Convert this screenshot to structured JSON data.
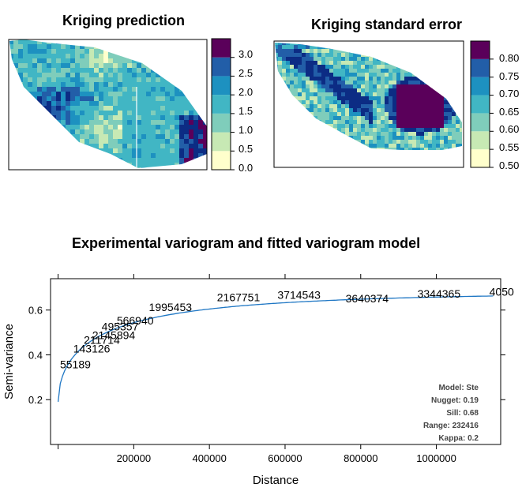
{
  "palette": [
    "#ffffcc",
    "#c7e9b4",
    "#7fcdbb",
    "#41b6c4",
    "#1d91c0",
    "#225ea8",
    "#0c2c84",
    "#5a005a"
  ],
  "panels": {
    "prediction": {
      "title": "Kriging prediction",
      "legend_ticks": [
        "3.0",
        "2.5",
        "2.0",
        "1.5",
        "1.0",
        "0.5",
        "0.0"
      ]
    },
    "stderr": {
      "title": "Kriging standard error",
      "legend_ticks": [
        "0.80",
        "0.75",
        "0.70",
        "0.65",
        "0.60",
        "0.55",
        "0.50"
      ]
    }
  },
  "variogram": {
    "title": "Experimental variogram and fitted variogram model",
    "model_text": [
      "Model: Ste",
      "Nugget: 0.19",
      "Sill: 0.68",
      "Range: 232416",
      "Kappa: 0.2"
    ]
  },
  "chart_data": [
    {
      "type": "heatmap",
      "title": "Kriging prediction",
      "legend": {
        "breaks": [
          0.0,
          0.5,
          1.0,
          1.5,
          2.0,
          2.5,
          3.0,
          3.5
        ]
      }
    },
    {
      "type": "heatmap",
      "title": "Kriging standard error",
      "legend": {
        "breaks": [
          0.5,
          0.55,
          0.6,
          0.65,
          0.7,
          0.75,
          0.8,
          0.85
        ]
      }
    },
    {
      "type": "scatter",
      "title": "Experimental variogram and fitted variogram model",
      "xlabel": "Distance",
      "ylabel": "Semi-variance",
      "xlim": [
        -20000,
        1170000
      ],
      "ylim": [
        0.0,
        0.74
      ],
      "xticks": [
        {
          "value": 0,
          "label": ""
        },
        {
          "value": 200000,
          "label": "200000"
        },
        {
          "value": 400000,
          "label": "400000"
        },
        {
          "value": 600000,
          "label": "600000"
        },
        {
          "value": 800000,
          "label": "800000"
        },
        {
          "value": 1000000,
          "label": "1000000"
        }
      ],
      "yticks": [
        {
          "value": 0.2,
          "label": "0.2"
        },
        {
          "value": 0.4,
          "label": "0.4"
        },
        {
          "value": 0.6,
          "label": "0.6"
        }
      ],
      "points": [
        {
          "x": 5000,
          "y": 0.34,
          "label": "55189"
        },
        {
          "x": 40000,
          "y": 0.41,
          "label": "143126"
        },
        {
          "x": 68000,
          "y": 0.45,
          "label": "211714"
        },
        {
          "x": 90000,
          "y": 0.47,
          "label": "2145894"
        },
        {
          "x": 115000,
          "y": 0.51,
          "label": "495357"
        },
        {
          "x": 155000,
          "y": 0.535,
          "label": "566940"
        },
        {
          "x": 240000,
          "y": 0.595,
          "label": "1995453"
        },
        {
          "x": 420000,
          "y": 0.64,
          "label": "2167751"
        },
        {
          "x": 580000,
          "y": 0.65,
          "label": "3714543"
        },
        {
          "x": 760000,
          "y": 0.635,
          "label": "3640374"
        },
        {
          "x": 950000,
          "y": 0.655,
          "label": "3344365"
        },
        {
          "x": 1140000,
          "y": 0.665,
          "label": "4050"
        }
      ],
      "model": {
        "model": "Ste",
        "nugget": 0.19,
        "sill": 0.68,
        "range": 232416,
        "kappa": 0.2
      }
    }
  ]
}
